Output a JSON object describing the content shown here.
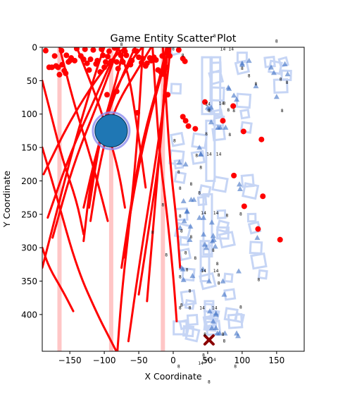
{
  "chart_data": {
    "type": "scatter",
    "title": "Game Entity Scatter Plot",
    "xlabel": "X Coordinate",
    "ylabel": "Y Coordinate",
    "xlim": [
      -190,
      190
    ],
    "ylim": [
      455,
      0
    ],
    "y_inverted": true,
    "grid": false,
    "xticks": [
      -150,
      -100,
      -50,
      0,
      50,
      100,
      150
    ],
    "yticks": [
      0,
      50,
      100,
      150,
      200,
      250,
      300,
      350,
      400
    ],
    "colors": {
      "red_points": "#ff0000",
      "triangles": "#3e6fc4",
      "squares": "#c6d5f5",
      "vertical_bands": "#ffc0c0",
      "big_circle": "#1f77b4",
      "big_circle_ring": "#8c8cf0",
      "x_marker": "#8b0000"
    },
    "vertical_bands_x": [
      -165,
      -90,
      -15
    ],
    "big_circle": {
      "x": -90,
      "y": 125
    },
    "x_marker": {
      "x": 52,
      "y": 438
    },
    "red_points": [
      [
        -185,
        5
      ],
      [
        -180,
        30
      ],
      [
        -176,
        30
      ],
      [
        -172,
        13
      ],
      [
        -170,
        28
      ],
      [
        -167,
        30
      ],
      [
        -165,
        41
      ],
      [
        -162,
        5
      ],
      [
        -161,
        26
      ],
      [
        -158,
        35
      ],
      [
        -156,
        39
      ],
      [
        -155,
        12
      ],
      [
        -152,
        22
      ],
      [
        -150,
        20
      ],
      [
        -148,
        16
      ],
      [
        -143,
        20
      ],
      [
        -140,
        2
      ],
      [
        -134,
        13
      ],
      [
        -130,
        18
      ],
      [
        -128,
        3
      ],
      [
        -125,
        24
      ],
      [
        -122,
        34
      ],
      [
        -120,
        18
      ],
      [
        -116,
        4
      ],
      [
        -112,
        25
      ],
      [
        -110,
        20
      ],
      [
        -106,
        37
      ],
      [
        -104,
        3
      ],
      [
        -102,
        12
      ],
      [
        -100,
        30
      ],
      [
        -98,
        22
      ],
      [
        -95,
        14
      ],
      [
        -93,
        6
      ],
      [
        -90,
        21
      ],
      [
        -85,
        1
      ],
      [
        -82,
        22
      ],
      [
        -80,
        32
      ],
      [
        -76,
        12
      ],
      [
        -73,
        22
      ],
      [
        -70,
        6
      ],
      [
        -68,
        12
      ],
      [
        -62,
        26
      ],
      [
        -60,
        20
      ],
      [
        -56,
        5
      ],
      [
        -53,
        6
      ],
      [
        -50,
        15
      ],
      [
        -46,
        23
      ],
      [
        -44,
        17
      ],
      [
        -40,
        28
      ],
      [
        -38,
        24
      ],
      [
        -34,
        16
      ],
      [
        -32,
        20
      ],
      [
        -28,
        15
      ],
      [
        -25,
        19
      ],
      [
        -22,
        34
      ],
      [
        -18,
        37
      ],
      [
        -16,
        13
      ],
      [
        -10,
        30
      ],
      [
        -8,
        8
      ],
      [
        -5,
        13
      ],
      [
        -15,
        40
      ],
      [
        -96,
        71
      ],
      [
        -82,
        66
      ],
      [
        -52,
        98
      ],
      [
        -8,
        71
      ],
      [
        8,
        4
      ],
      [
        14,
        17
      ],
      [
        17,
        21
      ],
      [
        14,
        104
      ],
      [
        18,
        110
      ],
      [
        22,
        118
      ],
      [
        32,
        122
      ],
      [
        46,
        82
      ],
      [
        72,
        110
      ],
      [
        87,
        88
      ],
      [
        102,
        126
      ],
      [
        128,
        138
      ],
      [
        88,
        192
      ],
      [
        130,
        223
      ],
      [
        103,
        238
      ],
      [
        123,
        272
      ],
      [
        155,
        288
      ]
    ],
    "red_arcs": [
      {
        "x": [
          -188,
          -150,
          -110,
          -80,
          -68
        ],
        "y": [
          190,
          110,
          45,
          8,
          0
        ]
      },
      {
        "x": [
          -182,
          -150,
          -115,
          -90,
          -78
        ],
        "y": [
          255,
          160,
          80,
          22,
          0
        ]
      },
      {
        "x": [
          -175,
          -145,
          -110,
          -88,
          -80
        ],
        "y": [
          285,
          175,
          85,
          25,
          0
        ]
      },
      {
        "x": [
          -130,
          -120,
          -100,
          -80,
          -72
        ],
        "y": [
          290,
          200,
          110,
          40,
          0
        ]
      },
      {
        "x": [
          -130,
          -110,
          -85,
          -62,
          -55
        ],
        "y": [
          240,
          150,
          70,
          15,
          0
        ]
      },
      {
        "x": [
          -122,
          -110,
          -95,
          -60,
          -45
        ],
        "y": [
          240,
          160,
          85,
          18,
          0
        ]
      },
      {
        "x": [
          -120,
          -108,
          -88,
          -45,
          -32
        ],
        "y": [
          260,
          180,
          95,
          22,
          0
        ]
      },
      {
        "x": [
          -75,
          -62,
          -45,
          -18,
          -10
        ],
        "y": [
          330,
          240,
          140,
          40,
          0
        ]
      },
      {
        "x": [
          -72,
          -58,
          -38,
          -14,
          -6
        ],
        "y": [
          315,
          220,
          120,
          30,
          0
        ]
      },
      {
        "x": [
          -65,
          -50,
          -30,
          -10,
          -4
        ],
        "y": [
          440,
          330,
          200,
          60,
          0
        ]
      },
      {
        "x": [
          -50,
          -35,
          -18,
          -12,
          -8
        ],
        "y": [
          370,
          270,
          150,
          45,
          0
        ]
      },
      {
        "x": [
          -38,
          -30,
          -20,
          -12,
          -8
        ],
        "y": [
          380,
          280,
          160,
          50,
          0
        ]
      },
      {
        "x": [
          -82,
          -75,
          -63,
          -52,
          -44
        ],
        "y": [
          470,
          370,
          260,
          140,
          0
        ]
      },
      {
        "x": [
          -190,
          -170,
          -145,
          -115,
          -100
        ],
        "y": [
          330,
          250,
          150,
          45,
          0
        ]
      },
      {
        "x": [
          -145,
          -160,
          -180,
          -190
        ],
        "y": [
          395,
          365,
          330,
          300
        ]
      },
      {
        "x": [
          -80,
          -90,
          -110,
          -140,
          -170,
          -190
        ],
        "y": [
          460,
          440,
          400,
          330,
          220,
          150
        ]
      },
      {
        "x": [
          -130,
          -140,
          -160,
          -175,
          -190
        ],
        "y": [
          280,
          230,
          170,
          110,
          50
        ]
      },
      {
        "x": [
          -95,
          -110,
          -130,
          -145,
          -165
        ],
        "y": [
          260,
          200,
          130,
          80,
          0
        ]
      },
      {
        "x": [
          -70,
          -80,
          -100,
          -115,
          -140
        ],
        "y": [
          240,
          180,
          110,
          65,
          0
        ]
      },
      {
        "x": [
          -40,
          -48,
          -58,
          -65,
          -80
        ],
        "y": [
          210,
          150,
          80,
          40,
          0
        ]
      },
      {
        "x": [
          5,
          0,
          -10,
          -20,
          -30
        ],
        "y": [
          410,
          340,
          240,
          160,
          0
        ]
      },
      {
        "x": [
          10,
          5,
          -5,
          -15
        ],
        "y": [
          330,
          260,
          170,
          0
        ]
      }
    ],
    "triangle_points": [
      [
        10,
        270
      ],
      [
        12,
        330
      ],
      [
        14,
        332
      ],
      [
        15,
        348
      ],
      [
        16,
        260
      ],
      [
        18,
        175
      ],
      [
        20,
        245
      ],
      [
        24,
        288
      ],
      [
        26,
        228
      ],
      [
        25,
        268
      ],
      [
        28,
        342
      ],
      [
        30,
        228
      ],
      [
        38,
        150
      ],
      [
        40,
        160
      ],
      [
        44,
        255
      ],
      [
        44,
        280
      ],
      [
        46,
        295
      ],
      [
        48,
        300
      ],
      [
        50,
        90
      ],
      [
        52,
        92
      ],
      [
        55,
        90
      ],
      [
        52,
        350
      ],
      [
        55,
        112
      ],
      [
        56,
        262
      ],
      [
        57,
        290
      ],
      [
        58,
        410
      ],
      [
        58,
        282
      ],
      [
        59,
        288
      ],
      [
        61,
        298
      ],
      [
        62,
        398
      ],
      [
        62,
        400
      ],
      [
        65,
        120
      ],
      [
        68,
        120
      ],
      [
        72,
        350
      ],
      [
        74,
        370
      ],
      [
        76,
        120
      ],
      [
        80,
        60
      ],
      [
        81,
        62
      ],
      [
        88,
        72
      ],
      [
        92,
        78
      ],
      [
        95,
        335
      ],
      [
        96,
        205
      ],
      [
        97,
        212
      ],
      [
        100,
        24
      ],
      [
        100,
        26
      ],
      [
        110,
        20
      ],
      [
        120,
        58
      ],
      [
        122,
        285
      ],
      [
        142,
        30
      ],
      [
        146,
        38
      ],
      [
        150,
        74
      ],
      [
        162,
        25
      ],
      [
        166,
        40
      ],
      [
        9,
        172
      ],
      [
        15,
        230
      ],
      [
        20,
        246
      ],
      [
        38,
        255
      ],
      [
        40,
        160
      ],
      [
        43,
        332
      ],
      [
        53,
        395
      ],
      [
        56,
        420
      ],
      [
        62,
        420
      ],
      [
        64,
        428
      ],
      [
        67,
        428
      ],
      [
        75,
        428
      ],
      [
        92,
        428
      ],
      [
        94,
        432
      ]
    ],
    "square_points": [
      [
        2,
        5
      ],
      [
        4,
        62
      ],
      [
        6,
        138
      ],
      [
        5,
        165
      ],
      [
        8,
        175
      ],
      [
        10,
        195
      ],
      [
        12,
        250
      ],
      [
        14,
        275
      ],
      [
        16,
        290
      ],
      [
        17,
        310
      ],
      [
        22,
        340
      ],
      [
        22,
        375
      ],
      [
        24,
        385
      ],
      [
        28,
        408
      ],
      [
        28,
        430
      ],
      [
        10,
        420
      ],
      [
        16,
        415
      ],
      [
        22,
        425
      ],
      [
        36,
        165
      ],
      [
        38,
        140
      ],
      [
        42,
        230
      ],
      [
        46,
        215
      ],
      [
        48,
        305
      ],
      [
        50,
        350
      ],
      [
        51,
        390
      ],
      [
        52,
        410
      ],
      [
        54,
        415
      ],
      [
        58,
        420
      ],
      [
        60,
        400
      ],
      [
        62,
        30
      ],
      [
        62,
        45
      ],
      [
        64,
        70
      ],
      [
        65,
        100
      ],
      [
        66,
        110
      ],
      [
        66,
        130
      ],
      [
        68,
        205
      ],
      [
        70,
        250
      ],
      [
        72,
        268
      ],
      [
        72,
        278
      ],
      [
        78,
        288
      ],
      [
        80,
        345
      ],
      [
        82,
        370
      ],
      [
        84,
        400
      ],
      [
        90,
        410
      ],
      [
        96,
        405
      ],
      [
        100,
        15
      ],
      [
        100,
        30
      ],
      [
        102,
        80
      ],
      [
        104,
        100
      ],
      [
        106,
        120
      ],
      [
        108,
        200
      ],
      [
        112,
        215
      ],
      [
        114,
        255
      ],
      [
        118,
        270
      ],
      [
        120,
        300
      ],
      [
        124,
        320
      ],
      [
        130,
        340
      ],
      [
        140,
        22
      ],
      [
        148,
        30
      ],
      [
        156,
        58
      ],
      [
        160,
        22
      ],
      [
        164,
        42
      ]
    ],
    "square_sizes": [
      8,
      10,
      12,
      14
    ],
    "point_labels": [
      {
        "x": 50,
        "y": 87,
        "text": "14"
      },
      {
        "x": 52,
        "y": 97,
        "text": "8"
      },
      {
        "x": 70,
        "y": 86,
        "text": "14"
      },
      {
        "x": 74,
        "y": 86,
        "text": "8"
      },
      {
        "x": 88,
        "y": 97,
        "text": "8"
      },
      {
        "x": 60,
        "y": -15,
        "text": "8"
      },
      {
        "x": 72,
        "y": 5,
        "text": "14"
      },
      {
        "x": 84,
        "y": 5,
        "text": "14"
      },
      {
        "x": 100,
        "y": 34,
        "text": "8"
      },
      {
        "x": 110,
        "y": 45,
        "text": "8"
      },
      {
        "x": 120,
        "y": 57,
        "text": "8"
      },
      {
        "x": 156,
        "y": 50,
        "text": "8"
      },
      {
        "x": 165,
        "y": 55,
        "text": "8"
      },
      {
        "x": 158,
        "y": 97,
        "text": "8"
      },
      {
        "x": 150,
        "y": -7,
        "text": "8"
      },
      {
        "x": -75,
        "y": -2,
        "text": "8"
      },
      {
        "x": 0,
        "y": 5,
        "text": "8"
      },
      {
        "x": 14,
        "y": 14,
        "text": "8"
      },
      {
        "x": 80,
        "y": 96,
        "text": "8"
      },
      {
        "x": 2,
        "y": 142,
        "text": "8"
      },
      {
        "x": 8,
        "y": 189,
        "text": "8"
      },
      {
        "x": 34,
        "y": 164,
        "text": "8"
      },
      {
        "x": 48,
        "y": 132,
        "text": "8"
      },
      {
        "x": 52,
        "y": 162,
        "text": "14"
      },
      {
        "x": 66,
        "y": 162,
        "text": "14"
      },
      {
        "x": 82,
        "y": 133,
        "text": "8"
      },
      {
        "x": 10,
        "y": 213,
        "text": "8"
      },
      {
        "x": 26,
        "y": 207,
        "text": "8"
      },
      {
        "x": 40,
        "y": 182,
        "text": "8"
      },
      {
        "x": 44,
        "y": 250,
        "text": "14"
      },
      {
        "x": 62,
        "y": 250,
        "text": "14"
      },
      {
        "x": 78,
        "y": 254,
        "text": "8"
      },
      {
        "x": 12,
        "y": 277,
        "text": "8"
      },
      {
        "x": 26,
        "y": 286,
        "text": "8"
      },
      {
        "x": 98,
        "y": 252,
        "text": "8"
      },
      {
        "x": 18,
        "y": 310,
        "text": "8"
      },
      {
        "x": 32,
        "y": 318,
        "text": "8"
      },
      {
        "x": 58,
        "y": 306,
        "text": "8"
      },
      {
        "x": 64,
        "y": 326,
        "text": "8"
      },
      {
        "x": 66,
        "y": 343,
        "text": "8"
      },
      {
        "x": 44,
        "y": 337,
        "text": "14"
      },
      {
        "x": 62,
        "y": 337,
        "text": "14"
      },
      {
        "x": 66,
        "y": 355,
        "text": "8"
      },
      {
        "x": 124,
        "y": 350,
        "text": "8"
      },
      {
        "x": -10,
        "y": 313,
        "text": "8"
      },
      {
        "x": 10,
        "y": 346,
        "text": "8"
      },
      {
        "x": 20,
        "y": 335,
        "text": "8"
      },
      {
        "x": 12,
        "y": 388,
        "text": "8"
      },
      {
        "x": 24,
        "y": 367,
        "text": "8"
      },
      {
        "x": 24,
        "y": 392,
        "text": "8"
      },
      {
        "x": 42,
        "y": 392,
        "text": "14"
      },
      {
        "x": 60,
        "y": 392,
        "text": "14"
      },
      {
        "x": 98,
        "y": 391,
        "text": "8"
      },
      {
        "x": 10,
        "y": 392,
        "text": "8"
      },
      {
        "x": 46,
        "y": 432,
        "text": "8"
      },
      {
        "x": 72,
        "y": 432,
        "text": "8"
      },
      {
        "x": 74,
        "y": 442,
        "text": "8"
      },
      {
        "x": 44,
        "y": 463,
        "text": "8"
      },
      {
        "x": 8,
        "y": 480,
        "text": "8"
      },
      {
        "x": 40,
        "y": 475,
        "text": "14"
      },
      {
        "x": 48,
        "y": 470,
        "text": "14"
      },
      {
        "x": 58,
        "y": 470,
        "text": "14"
      },
      {
        "x": 90,
        "y": 480,
        "text": "8"
      },
      {
        "x": 52,
        "y": 503,
        "text": "8"
      },
      {
        "x": -15,
        "y": 238,
        "text": "8"
      },
      {
        "x": -30,
        "y": 279,
        "text": "8"
      },
      {
        "x": 10,
        "y": 255,
        "text": "8"
      },
      {
        "x": 38,
        "y": 220,
        "text": "8"
      }
    ]
  }
}
